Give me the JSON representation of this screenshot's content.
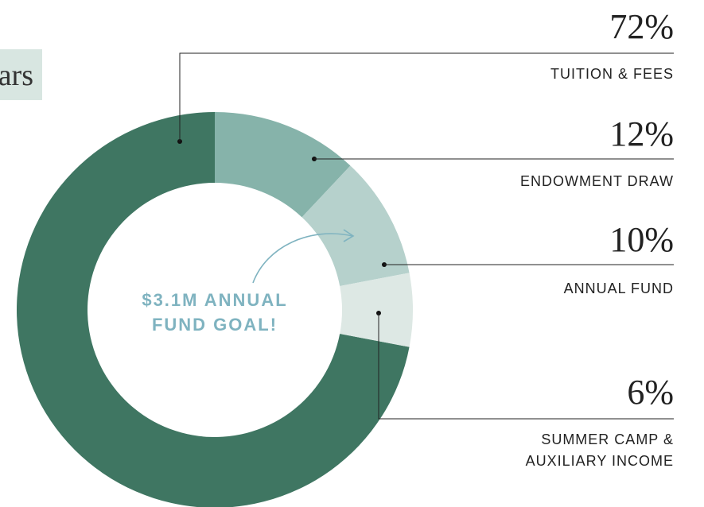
{
  "header": {
    "tag": "ars"
  },
  "chart_data": {
    "type": "pie",
    "donut": true,
    "categories": [
      "TUITION & FEES",
      "ENDOWMENT DRAW",
      "ANNUAL FUND",
      "SUMMER CAMP &\nAUXILIARY INCOME"
    ],
    "values": [
      72,
      12,
      10,
      6
    ],
    "value_labels": [
      "72%",
      "12%",
      "10%",
      "6%"
    ],
    "colors": [
      "#3f7662",
      "#86b3aa",
      "#b6d1cc",
      "#dde8e4"
    ],
    "annotation": "$3.1M ANNUAL\nFUND GOAL!"
  }
}
